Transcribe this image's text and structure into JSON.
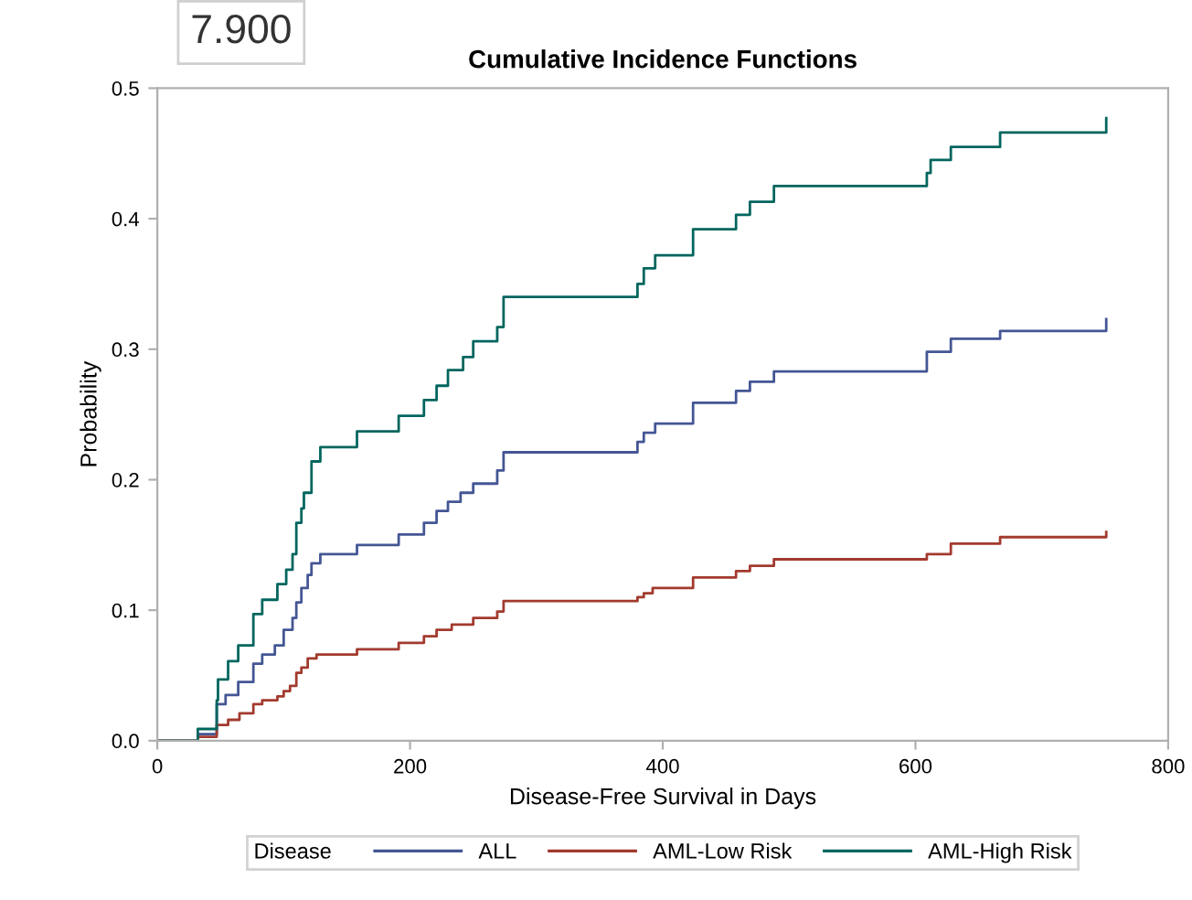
{
  "chart_data": {
    "type": "step",
    "title": "Cumulative Incidence Functions",
    "xlabel": "Disease-Free Survival in Days",
    "ylabel": "Probability",
    "legend_title": "Disease",
    "legend": "bottom",
    "grid": false,
    "annotations": [
      "7.900"
    ],
    "xlim": [
      0,
      800
    ],
    "xticks": [
      0,
      200,
      400,
      600,
      800
    ],
    "ylim": [
      0,
      0.5
    ],
    "yticks": [
      {
        "value": 0,
        "label": "0.0"
      },
      {
        "value": 0.1,
        "label": "0.1"
      },
      {
        "value": 0.2,
        "label": "0.2"
      },
      {
        "value": 0.3,
        "label": "0.3"
      },
      {
        "value": 0.4,
        "label": "0.4"
      },
      {
        "value": 0.5,
        "label": "0.5"
      }
    ],
    "series": [
      {
        "name": "ALL",
        "color": "#445694",
        "x": [
          0,
          32,
          47,
          54,
          64,
          76,
          83,
          93,
          100,
          107,
          110,
          114,
          119,
          122,
          129,
          158,
          191,
          211,
          221,
          230,
          240,
          250,
          269,
          274,
          380,
          385,
          394,
          424,
          458,
          469,
          488,
          609,
          628,
          667,
          751
        ],
        "values": [
          0,
          0.005,
          0.028,
          0.035,
          0.045,
          0.059,
          0.066,
          0.073,
          0.085,
          0.094,
          0.106,
          0.117,
          0.127,
          0.136,
          0.143,
          0.15,
          0.158,
          0.167,
          0.176,
          0.183,
          0.19,
          0.197,
          0.207,
          0.221,
          0.229,
          0.236,
          0.243,
          0.259,
          0.268,
          0.275,
          0.283,
          0.298,
          0.308,
          0.314,
          0.323
        ]
      },
      {
        "name": "AML-Low Risk",
        "color": "#a23a2e",
        "x": [
          0,
          32,
          47,
          56,
          65,
          76,
          83,
          95,
          100,
          105,
          110,
          114,
          119,
          126,
          158,
          191,
          211,
          221,
          233,
          250,
          269,
          274,
          380,
          385,
          392,
          424,
          458,
          469,
          488,
          609,
          628,
          667,
          751
        ],
        "values": [
          0,
          0.003,
          0.012,
          0.016,
          0.021,
          0.028,
          0.031,
          0.034,
          0.038,
          0.042,
          0.052,
          0.056,
          0.063,
          0.066,
          0.07,
          0.075,
          0.08,
          0.085,
          0.089,
          0.094,
          0.099,
          0.107,
          0.11,
          0.113,
          0.117,
          0.125,
          0.13,
          0.134,
          0.139,
          0.143,
          0.151,
          0.156,
          0.16
        ]
      },
      {
        "name": "AML-High Risk",
        "color": "#01665e",
        "x": [
          0,
          32,
          47,
          48,
          56,
          64,
          76,
          83,
          95,
          102,
          107,
          110,
          114,
          116,
          122,
          129,
          158,
          191,
          211,
          221,
          230,
          242,
          250,
          269,
          274,
          380,
          385,
          394,
          424,
          458,
          469,
          488,
          609,
          612,
          628,
          667,
          751
        ],
        "values": [
          0,
          0.009,
          0.031,
          0.047,
          0.061,
          0.073,
          0.097,
          0.108,
          0.12,
          0.131,
          0.143,
          0.167,
          0.178,
          0.19,
          0.214,
          0.225,
          0.237,
          0.249,
          0.261,
          0.272,
          0.284,
          0.294,
          0.306,
          0.317,
          0.34,
          0.35,
          0.362,
          0.372,
          0.392,
          0.403,
          0.413,
          0.425,
          0.435,
          0.445,
          0.455,
          0.466,
          0.477
        ]
      }
    ]
  }
}
